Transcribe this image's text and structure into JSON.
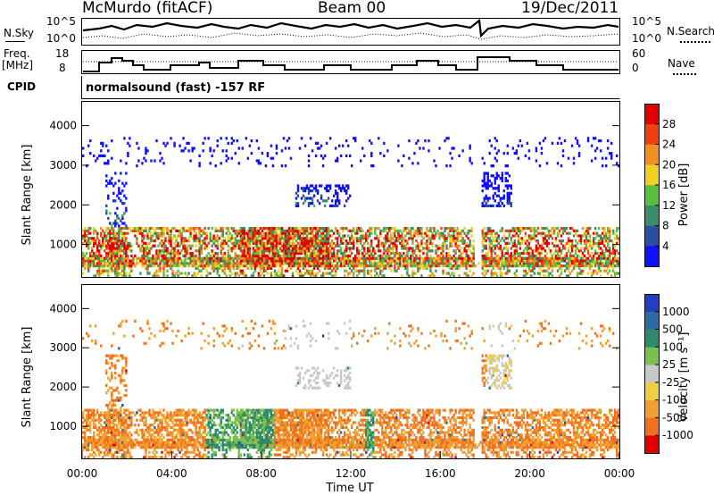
{
  "header": {
    "station": "McMurdo (fitACF)",
    "beam": "Beam 00",
    "date": "19/Dec/2011"
  },
  "noise_panel": {
    "left_label": "N.Sky",
    "right_label": "N.Search",
    "left_ticks": [
      "10^5",
      "10^0"
    ],
    "right_ticks": [
      "10^5",
      "10^0"
    ]
  },
  "freq_panel": {
    "left_label_line1": "Freq.",
    "left_label_line2": "[MHz]",
    "right_label": "Nave",
    "left_ticks": [
      "18",
      "8"
    ],
    "right_ticks": [
      "60",
      "0"
    ]
  },
  "cpid": {
    "label": "CPID",
    "text": "normalsound (fast) -157 RF"
  },
  "chart_data": [
    {
      "type": "heatmap",
      "title": "Power",
      "ylabel": "Slant Range [km]",
      "xlabel": "",
      "yticks": [
        "1000",
        "2000",
        "3000",
        "4000"
      ],
      "ylim": [
        180,
        4600
      ],
      "xlim_hours": [
        0,
        24
      ],
      "colorbar_label": "Power [dB]",
      "colorbar_ticks": [
        "4",
        "8",
        "12",
        "16",
        "20",
        "24",
        "28"
      ],
      "colorbar_colors": [
        "#1010ff",
        "#2c4ea0",
        "#3c8c6c",
        "#58c040",
        "#f0d020",
        "#f09020",
        "#f04010",
        "#e00000"
      ]
    },
    {
      "type": "heatmap",
      "title": "Velocity",
      "ylabel": "Slant Range [km]",
      "xlabel": "Time UT",
      "xticks": [
        "00:00",
        "04:00",
        "08:00",
        "12:00",
        "16:00",
        "20:00",
        "00:00"
      ],
      "yticks": [
        "1000",
        "2000",
        "3000",
        "4000"
      ],
      "ylim": [
        180,
        4600
      ],
      "xlim_hours": [
        0,
        24
      ],
      "colorbar_label": "Velocity [m s⁻¹]",
      "colorbar_ticks": [
        "1000",
        "500",
        "100",
        "25",
        "-25",
        "-100",
        "-500",
        "-1000"
      ],
      "colorbar_colors": [
        "#2040c0",
        "#2c6ca0",
        "#2e8a6c",
        "#7ac050",
        "#c8c8c8",
        "#f0d040",
        "#f0a030",
        "#f07020",
        "#e00000"
      ]
    }
  ]
}
